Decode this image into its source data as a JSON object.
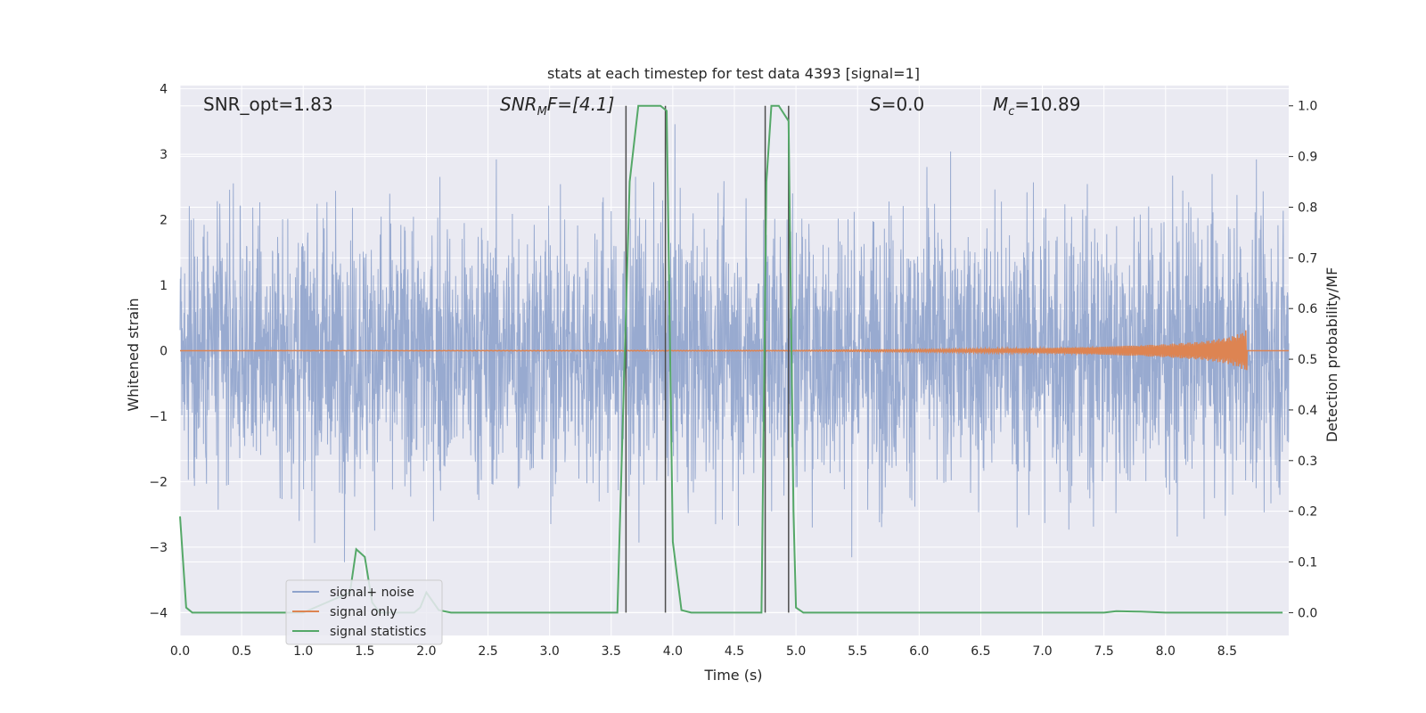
{
  "chart_data": {
    "type": "line",
    "title": "stats at each timestep for test data 4393 [signal=1]",
    "xlabel": "Time (s)",
    "ylabel_left": "Whitened strain",
    "ylabel_right": "Detection probability/MF",
    "xlim": [
      0.0,
      9.0
    ],
    "ylim_left": [
      -4.35,
      4.05
    ],
    "ylim_right": [
      -0.045,
      1.04
    ],
    "xticks": [
      "0.0",
      "0.5",
      "1.0",
      "1.5",
      "2.0",
      "2.5",
      "3.0",
      "3.5",
      "4.0",
      "4.5",
      "5.0",
      "5.5",
      "6.0",
      "6.5",
      "7.0",
      "7.5",
      "8.0",
      "8.5"
    ],
    "yticks_left": [
      "4",
      "3",
      "2",
      "1",
      "0",
      "−1",
      "−2",
      "−3",
      "−4"
    ],
    "yticks_right": [
      "1.0",
      "0.9",
      "0.8",
      "0.7",
      "0.6",
      "0.5",
      "0.4",
      "0.3",
      "0.2",
      "0.1",
      "0.0"
    ],
    "grid": true,
    "annotations": {
      "snr_opt": "SNR_opt=1.83",
      "snr_mf_main": "SNR",
      "snr_mf_sub": "M",
      "snr_mf_tail": "F=[4.1]",
      "s_stat_var": "S",
      "s_stat_val": "=0.0",
      "mc_var": "M",
      "mc_sub": "c",
      "mc_val": "=10.89"
    },
    "legend": {
      "location": "lower-left",
      "entries": [
        "signal+ noise",
        "signal only",
        "signal statistics"
      ]
    },
    "series": [
      {
        "name": "signal+ noise",
        "color": "#8fa3cc",
        "note": "dense noise, approx amplitude band",
        "x_range": [
          0.0,
          9.0
        ],
        "typical_amplitude": 1.8,
        "peak_amplitude": 3.7
      },
      {
        "name": "signal only",
        "color": "#dd8452",
        "note": "chirp growing until merger",
        "x": [
          0.0,
          5.0,
          6.0,
          7.0,
          7.5,
          8.0,
          8.3,
          8.5,
          8.6,
          8.66
        ],
        "envelope": [
          0.0,
          0.005,
          0.02,
          0.04,
          0.06,
          0.1,
          0.14,
          0.2,
          0.26,
          0.32
        ]
      },
      {
        "name": "signal statistics",
        "color": "#55a868",
        "axis": "right",
        "x": [
          0.0,
          0.05,
          0.1,
          0.5,
          1.0,
          1.38,
          1.43,
          1.5,
          1.56,
          1.62,
          1.7,
          1.8,
          1.9,
          1.95,
          2.0,
          2.1,
          2.2,
          3.0,
          3.55,
          3.65,
          3.72,
          3.9,
          3.95,
          4.0,
          4.07,
          4.15,
          4.5,
          4.72,
          4.76,
          4.8,
          4.86,
          4.94,
          4.98,
          5.0,
          5.06,
          5.5,
          7.0,
          7.5,
          7.6,
          7.8,
          8.0,
          8.95
        ],
        "values": [
          0.19,
          0.01,
          0.0,
          0.0,
          0.0,
          0.04,
          0.125,
          0.11,
          0.02,
          0.0,
          0.0,
          0.0,
          0.0,
          0.01,
          0.04,
          0.005,
          0.0,
          0.0,
          0.0,
          0.85,
          1.0,
          1.0,
          0.99,
          0.14,
          0.005,
          0.0,
          0.0,
          0.0,
          0.85,
          1.0,
          1.0,
          0.97,
          0.2,
          0.01,
          0.0,
          0.0,
          0.0,
          0.0,
          0.003,
          0.002,
          0.0,
          0.0
        ]
      }
    ],
    "vertical_markers": [
      {
        "x": 3.62,
        "color": "#4d4d4d"
      },
      {
        "x": 3.94,
        "color": "#4d4d4d"
      },
      {
        "x": 4.75,
        "color": "#4d4d4d"
      },
      {
        "x": 4.94,
        "color": "#4d4d4d"
      }
    ],
    "colors": {
      "background": "#eaeaf2",
      "grid": "#ffffff",
      "noise": "#8fa3cc",
      "signal": "#dd8452",
      "stats": "#55a868"
    }
  }
}
